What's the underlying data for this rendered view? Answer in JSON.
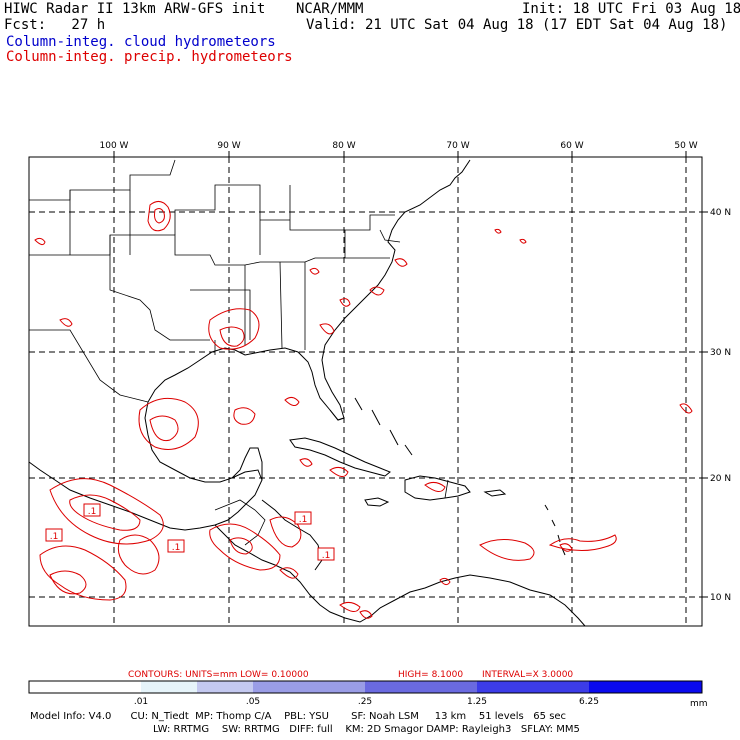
{
  "header": {
    "title": "HIWC Radar II 13km ARW-GFS init",
    "org": "NCAR/MMM",
    "init": "Init: 18 UTC Fri 03 Aug 18",
    "fcst": "Fcst:   27 h",
    "valid": "Valid: 21 UTC Sat 04 Aug 18 (17 EDT Sat 04 Aug 18)",
    "legend_cloud": "Column-integ. cloud hydrometeors",
    "legend_precip": "Column-integ. precip. hydrometeors",
    "color_cloud": "#0000cc",
    "color_precip": "#dd0000"
  },
  "map": {
    "lon_labels": [
      "100 W",
      "90 W",
      "80 W",
      "70 W",
      "60 W",
      "50 W"
    ],
    "lat_labels": [
      "40 N",
      "30 N",
      "20 N",
      "10 N"
    ],
    "contour_labels": [
      ".1",
      ".1",
      ".1",
      ".1"
    ]
  },
  "contours_line": {
    "contours": "CONTOURS:  UNITS=mm  LOW= 0.10000",
    "high": "HIGH=  8.1000",
    "interval": "INTERVAL=X  3.0000"
  },
  "colorbar": {
    "ticks": [
      ".01",
      ".05",
      ".25",
      "1.25",
      "6.25"
    ],
    "units": "mm",
    "colors": [
      "#ffffff",
      "#e6f4fa",
      "#c4c9f0",
      "#9a9de6",
      "#6a6ae0",
      "#3c3ce8",
      "#0a0aee"
    ]
  },
  "model_info": {
    "line1": "Model Info: V4.0      CU: N_Tiedt  MP: Thomp C/A    PBL: YSU       SF: Noah LSM     13 km    51 levels   65 sec",
    "line2": "LW: RRTMG    SW: RRTMG   DIFF: full    KM: 2D Smagor DAMP: Rayleigh3   SFLAY: MM5"
  }
}
